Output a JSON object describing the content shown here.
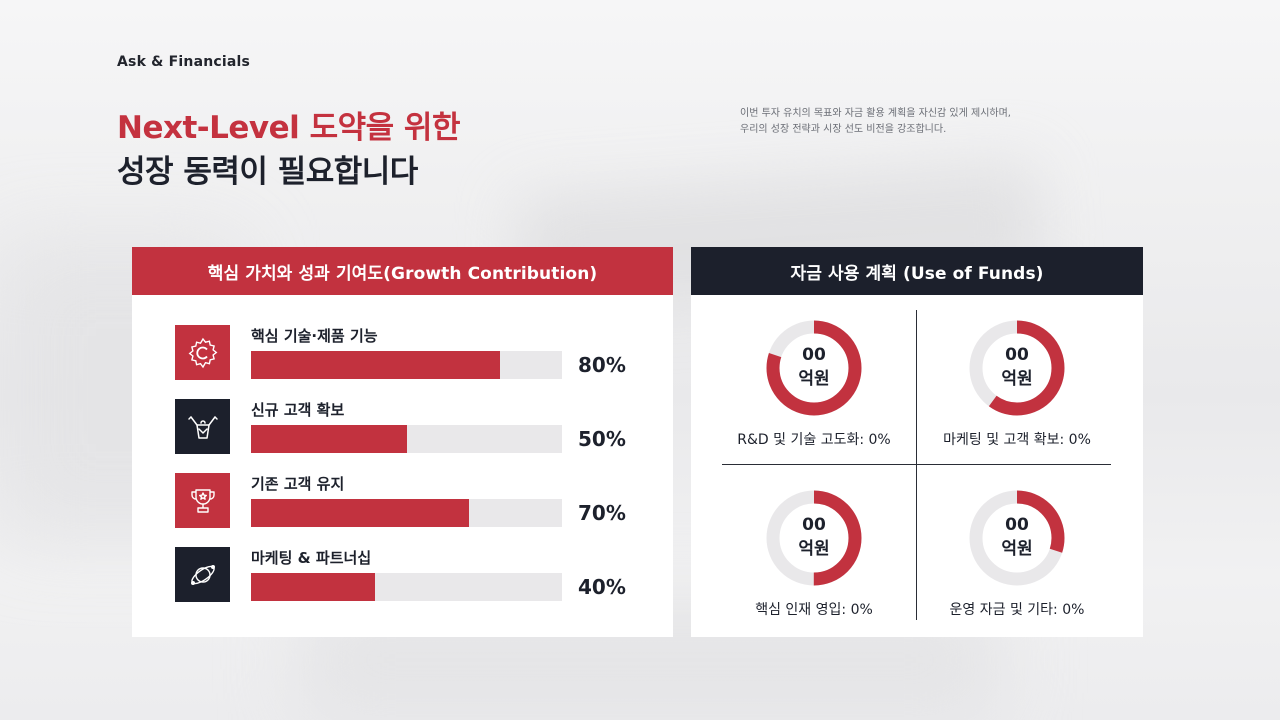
{
  "header": {
    "section_label": "Ask & Financials",
    "title_line1": "Next-Level 도약을 위한",
    "title_line2": "성장 동력이 필요합니다",
    "description_line1": "이번 투자 유치의 목표와 자금 활용 계획을 자신감 있게 제시하며,",
    "description_line2": "우리의 성장 전략과 시장 선도 비전을 강조합니다."
  },
  "growth": {
    "title": "핵심 가치와 성과 기여도(Growth Contribution)",
    "items": [
      {
        "label": "핵심 기술·제품 기능",
        "value": 80,
        "value_label": "80%",
        "icon": "gear-icon",
        "icon_bg": "red"
      },
      {
        "label": "신규 고객 확보",
        "value": 50,
        "value_label": "50%",
        "icon": "cheering-person-icon",
        "icon_bg": "dark"
      },
      {
        "label": "기존 고객 유지",
        "value": 70,
        "value_label": "70%",
        "icon": "trophy-icon",
        "icon_bg": "red"
      },
      {
        "label": "마케팅 & 파트너십",
        "value": 40,
        "value_label": "40%",
        "icon": "orbit-icon",
        "icon_bg": "dark"
      }
    ]
  },
  "funds": {
    "title": "자금 사용 계획 (Use of Funds)",
    "items": [
      {
        "amount": "00",
        "unit": "억원",
        "caption": "R&D 및 기술 고도화: 0%",
        "ring_fraction": 0.8
      },
      {
        "amount": "00",
        "unit": "억원",
        "caption": "마케팅 및 고객 확보: 0%",
        "ring_fraction": 0.6
      },
      {
        "amount": "00",
        "unit": "억원",
        "caption": "핵심 인재 영입: 0%",
        "ring_fraction": 0.5
      },
      {
        "amount": "00",
        "unit": "억원",
        "caption": "운영 자금 및 기타: 0%",
        "ring_fraction": 0.3
      }
    ]
  },
  "colors": {
    "accent_red": "#c2323f",
    "dark_navy": "#1c202c",
    "track_gray": "#e9e8ea"
  }
}
